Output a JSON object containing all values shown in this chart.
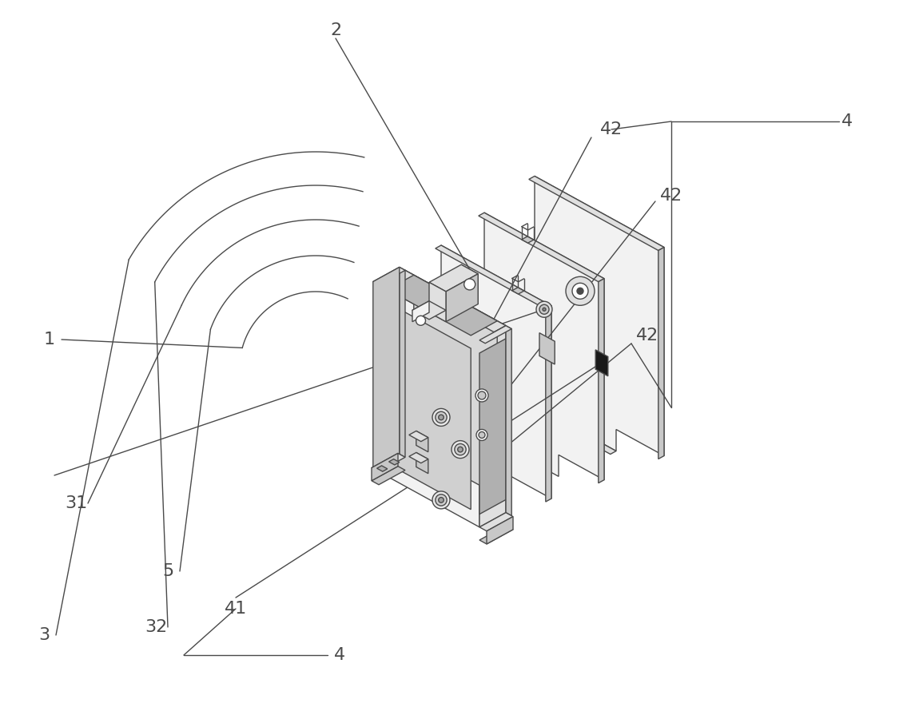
{
  "bg_color": "#ffffff",
  "lc": "#4a4a4a",
  "lw": 1.0,
  "fig_width": 11.45,
  "fig_height": 9.1,
  "label_fs": 16,
  "label_color": "#4a4a4a"
}
